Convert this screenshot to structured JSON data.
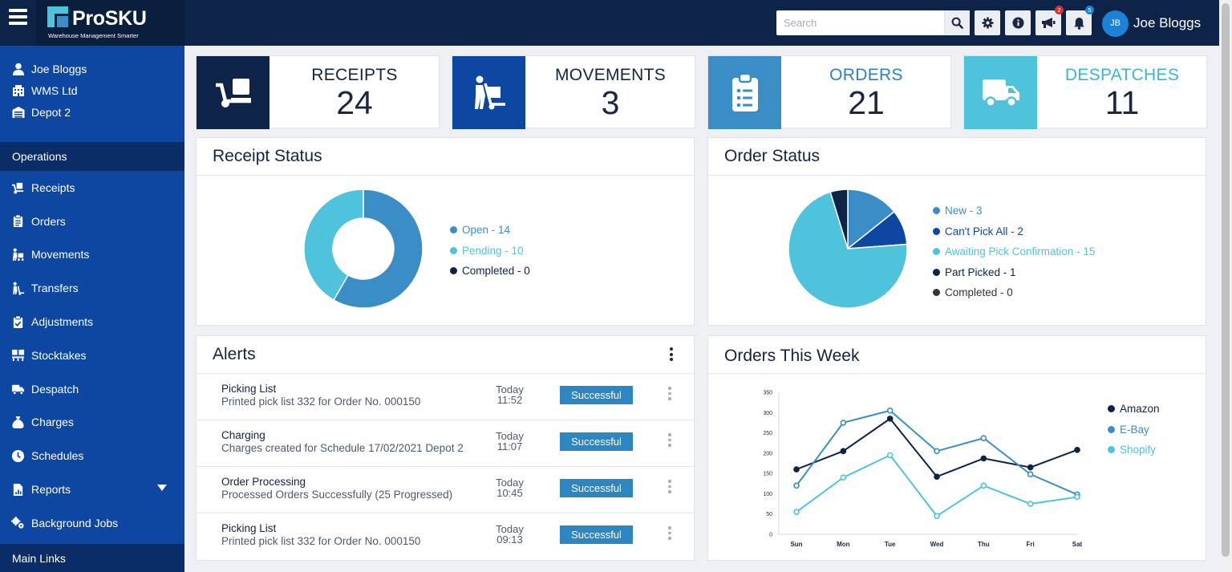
{
  "header": {
    "brand": "ProSKU",
    "tagline": "Warehouse Management Smarter",
    "search_placeholder": "Search",
    "announcements_badge": "2",
    "notifications_badge": "5",
    "user_initials": "JB",
    "user_name": "Joe Bloggs"
  },
  "sidebar": {
    "user": "Joe Bloggs",
    "company": "WMS Ltd",
    "depot": "Depot 2",
    "operations_heading": "Operations",
    "items": [
      {
        "label": "Receipts",
        "icon": "dolly-icon"
      },
      {
        "label": "Orders",
        "icon": "clipboard-icon"
      },
      {
        "label": "Movements",
        "icon": "person-carry-icon"
      },
      {
        "label": "Transfers",
        "icon": "person-dolly-icon"
      },
      {
        "label": "Adjustments",
        "icon": "clipboard-check-icon"
      },
      {
        "label": "Stocktakes",
        "icon": "pallet-icon"
      },
      {
        "label": "Despatch",
        "icon": "truck-icon"
      },
      {
        "label": "Charges",
        "icon": "money-bag-icon"
      },
      {
        "label": "Schedules",
        "icon": "clock-icon"
      },
      {
        "label": "Reports",
        "icon": "file-icon"
      },
      {
        "label": "Background Jobs",
        "icon": "cogs-icon"
      }
    ],
    "main_links_heading": "Main Links"
  },
  "kpis": [
    {
      "label": "RECEIPTS",
      "value": "24",
      "color": "#0d2347",
      "label_color": "#14233f",
      "icon": "dolly-icon"
    },
    {
      "label": "MOVEMENTS",
      "value": "3",
      "color": "#0d47a1",
      "label_color": "#14233f",
      "icon": "person-dolly-icon"
    },
    {
      "label": "ORDERS",
      "value": "21",
      "color": "#3b8ec5",
      "label_color": "#2e7fbf",
      "icon": "clipboard-list-icon"
    },
    {
      "label": "DESPATCHES",
      "value": "11",
      "color": "#4fc3dc",
      "label_color": "#3fb4d2",
      "icon": "truck-icon"
    }
  ],
  "receipt_status": {
    "title": "Receipt Status",
    "legend": [
      {
        "label": "Open - 14",
        "color": "#3b8ec5"
      },
      {
        "label": "Pending - 10",
        "color": "#4fc3dc"
      },
      {
        "label": "Completed - 0",
        "color": "#0d2347"
      }
    ]
  },
  "order_status": {
    "title": "Order Status",
    "legend": [
      {
        "label": "New - 3",
        "color": "#3b8ec5"
      },
      {
        "label": "Can't Pick All - 2",
        "color": "#0d47a1"
      },
      {
        "label": "Awaiting Pick Confirmation - 15",
        "color": "#4fc3dc"
      },
      {
        "label": "Part Picked - 1",
        "color": "#0d2347"
      },
      {
        "label": "Completed - 0",
        "color": "#333333"
      }
    ]
  },
  "alerts": {
    "title": "Alerts",
    "rows": [
      {
        "title": "Picking List",
        "desc": "Printed pick list 332 for Order No. 000150",
        "day": "Today",
        "time": "11:52",
        "status": "Successful"
      },
      {
        "title": "Charging",
        "desc": "Charges created for Schedule 17/02/2021 Depot 2",
        "day": "Today",
        "time": "11:07",
        "status": "Successful"
      },
      {
        "title": "Order Processing",
        "desc": "Processed Orders Successfully (25 Progressed)",
        "day": "Today",
        "time": "10:45",
        "status": "Successful"
      },
      {
        "title": "Picking List",
        "desc": "Printed pick list 332 for Order No. 000150",
        "day": "Today",
        "time": "09:13",
        "status": "Successful"
      }
    ]
  },
  "orders_week": {
    "title": "Orders This Week"
  },
  "chart_data": [
    {
      "type": "pie",
      "title": "Receipt Status",
      "style": "donut",
      "categories": [
        "Open",
        "Pending",
        "Completed"
      ],
      "values": [
        14,
        10,
        0
      ],
      "colors": [
        "#3b8ec5",
        "#4fc3dc",
        "#0d2347"
      ]
    },
    {
      "type": "pie",
      "title": "Order Status",
      "categories": [
        "New",
        "Can't Pick All",
        "Awaiting Pick Confirmation",
        "Part Picked",
        "Completed"
      ],
      "values": [
        3,
        2,
        15,
        1,
        0
      ],
      "colors": [
        "#3b8ec5",
        "#0d47a1",
        "#4fc3dc",
        "#0d2347",
        "#333333"
      ]
    },
    {
      "type": "line",
      "title": "Orders This Week",
      "categories": [
        "Sun",
        "Mon",
        "Tue",
        "Wed",
        "Thu",
        "Fri",
        "Sat"
      ],
      "ylim": [
        0,
        350
      ],
      "yticks": [
        0,
        50,
        100,
        150,
        200,
        250,
        300,
        350
      ],
      "grid": false,
      "legend": "right",
      "series": [
        {
          "name": "Amazon",
          "color": "#0d2347",
          "values": [
            160,
            205,
            285,
            142,
            187,
            165,
            208
          ]
        },
        {
          "name": "E-Bay",
          "color": "#3b8ec5",
          "values": [
            120,
            275,
            305,
            205,
            237,
            148,
            98
          ]
        },
        {
          "name": "Shopify",
          "color": "#4fc3dc",
          "values": [
            55,
            140,
            195,
            45,
            120,
            75,
            92
          ]
        }
      ]
    }
  ]
}
